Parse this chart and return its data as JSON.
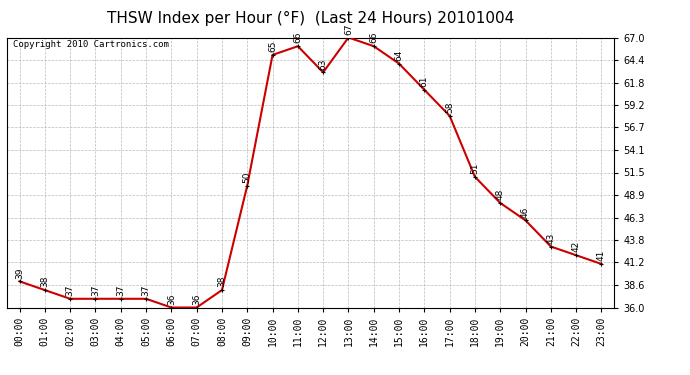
{
  "title": "THSW Index per Hour (°F)  (Last 24 Hours) 20101004",
  "copyright": "Copyright 2010 Cartronics.com",
  "hours": [
    "00:00",
    "01:00",
    "02:00",
    "03:00",
    "04:00",
    "05:00",
    "06:00",
    "07:00",
    "08:00",
    "09:00",
    "10:00",
    "11:00",
    "12:00",
    "13:00",
    "14:00",
    "15:00",
    "16:00",
    "17:00",
    "18:00",
    "19:00",
    "20:00",
    "21:00",
    "22:00",
    "23:00"
  ],
  "values": [
    39,
    38,
    37,
    37,
    37,
    37,
    36,
    36,
    38,
    50,
    65,
    66,
    63,
    67,
    66,
    64,
    61,
    58,
    51,
    48,
    46,
    43,
    42,
    41
  ],
  "ylim": [
    36.0,
    67.0
  ],
  "yticks": [
    36.0,
    38.6,
    41.2,
    43.8,
    46.3,
    48.9,
    51.5,
    54.1,
    56.7,
    59.2,
    61.8,
    64.4,
    67.0
  ],
  "line_color": "#cc0000",
  "marker_color": "#000000",
  "bg_color": "#ffffff",
  "plot_bg_color": "#ffffff",
  "grid_color": "#bbbbbb",
  "title_fontsize": 11,
  "label_fontsize": 7,
  "annotation_fontsize": 6.5,
  "copyright_fontsize": 6.5
}
